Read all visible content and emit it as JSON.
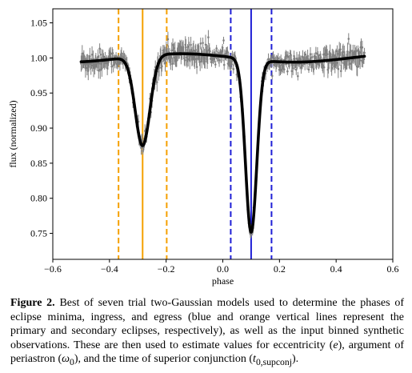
{
  "chart_data": {
    "type": "line",
    "title": "",
    "xlabel": "phase",
    "ylabel": "flux (normalized)",
    "xlim": [
      -0.6,
      0.6
    ],
    "ylim": [
      0.713,
      1.07
    ],
    "xticks": [
      -0.6,
      -0.4,
      -0.2,
      0.0,
      0.2,
      0.4,
      0.6
    ],
    "xtick_labels": [
      "−0.6",
      "−0.4",
      "−0.2",
      "0.0",
      "0.2",
      "0.4",
      "0.6"
    ],
    "yticks": [
      0.75,
      0.8,
      0.85,
      0.9,
      0.95,
      1.0,
      1.05
    ],
    "ytick_labels": [
      "0.75",
      "0.80",
      "0.85",
      "0.90",
      "0.95",
      "1.00",
      "1.05"
    ],
    "grid": false,
    "series": [
      {
        "kind": "observations",
        "color": "#808080",
        "x_range": [
          -0.5,
          0.5
        ],
        "noise_sigma": 0.006
      },
      {
        "kind": "model",
        "color": "#000000",
        "x_range": [
          -0.5,
          0.5
        ],
        "params": {
          "baseline": 1.0,
          "secondary": {
            "center": -0.283,
            "depth": 0.128,
            "width": 0.026
          },
          "primary": {
            "center": 0.1,
            "depth": 0.246,
            "width": 0.02
          },
          "wave": {
            "amplitude": 0.006,
            "period": 0.8,
            "peak": -0.15
          }
        }
      }
    ],
    "vertical_lines": [
      {
        "eclipse": "secondary",
        "role": "ingress",
        "x": -0.368,
        "color": "#f5a000",
        "style": "dashed"
      },
      {
        "eclipse": "secondary",
        "role": "minimum",
        "x": -0.283,
        "color": "#f5a000",
        "style": "solid"
      },
      {
        "eclipse": "secondary",
        "role": "egress",
        "x": -0.198,
        "color": "#f5a000",
        "style": "dashed"
      },
      {
        "eclipse": "primary",
        "role": "ingress",
        "x": 0.028,
        "color": "#1f1fd6",
        "style": "dashed"
      },
      {
        "eclipse": "primary",
        "role": "minimum",
        "x": 0.1,
        "color": "#1f1fd6",
        "style": "solid"
      },
      {
        "eclipse": "primary",
        "role": "egress",
        "x": 0.172,
        "color": "#1f1fd6",
        "style": "dashed"
      }
    ]
  },
  "caption": {
    "label": "Figure 2.",
    "text_1": " Best of seven trial two-Gaussian models used to determine the phases of eclipse minima, ingress, and egress (blue and orange vertical lines represent the primary and secondary eclipses, respectively), as well as the input binned synthetic observations. These are then used to estimate values for eccentricity (",
    "e": "e",
    "text_2": "), argument of periastron (",
    "omega": "ω",
    "omega_sub": "0",
    "text_3": "), and the time of superior conjunction (",
    "t": "t",
    "t_sub": "0,supconj",
    "text_4": ")."
  }
}
